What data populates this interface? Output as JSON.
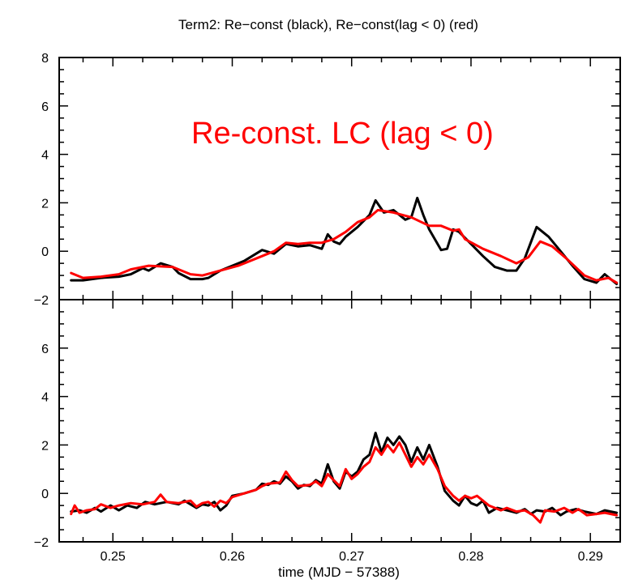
{
  "chart_data": [
    {
      "type": "line",
      "title": "Term2: Re−const (black), Re−const(lag < 0) (red)",
      "annotation": "Re-const. LC (lag < 0)",
      "xlim": [
        0.2455,
        0.2925
      ],
      "ylim": [
        -2,
        8
      ],
      "yticks": [
        -2,
        0,
        2,
        4,
        6,
        8
      ],
      "ytick_labels": [
        "−2",
        "0",
        "2",
        "4",
        "6",
        "8"
      ],
      "series": [
        {
          "color": "#000000",
          "points": [
            [
              0.2465,
              -1.2
            ],
            [
              0.2475,
              -1.2
            ],
            [
              0.249,
              -1.1
            ],
            [
              0.2505,
              -1.05
            ],
            [
              0.2515,
              -0.95
            ],
            [
              0.2525,
              -0.7
            ],
            [
              0.253,
              -0.8
            ],
            [
              0.254,
              -0.5
            ],
            [
              0.255,
              -0.65
            ],
            [
              0.2555,
              -0.9
            ],
            [
              0.2565,
              -1.15
            ],
            [
              0.2575,
              -1.15
            ],
            [
              0.258,
              -1.1
            ],
            [
              0.259,
              -0.8
            ],
            [
              0.2605,
              -0.5
            ],
            [
              0.261,
              -0.4
            ],
            [
              0.262,
              -0.1
            ],
            [
              0.2625,
              0.05
            ],
            [
              0.2635,
              -0.1
            ],
            [
              0.2645,
              0.3
            ],
            [
              0.2655,
              0.2
            ],
            [
              0.2665,
              0.25
            ],
            [
              0.2675,
              0.1
            ],
            [
              0.268,
              0.7
            ],
            [
              0.2685,
              0.4
            ],
            [
              0.269,
              0.3
            ],
            [
              0.2695,
              0.6
            ],
            [
              0.2705,
              1.0
            ],
            [
              0.2715,
              1.5
            ],
            [
              0.272,
              2.1
            ],
            [
              0.2727,
              1.6
            ],
            [
              0.2735,
              1.7
            ],
            [
              0.2745,
              1.3
            ],
            [
              0.275,
              1.4
            ],
            [
              0.2755,
              2.2
            ],
            [
              0.276,
              1.5
            ],
            [
              0.2765,
              0.9
            ],
            [
              0.2775,
              0.05
            ],
            [
              0.278,
              0.1
            ],
            [
              0.2785,
              0.9
            ],
            [
              0.279,
              0.8
            ],
            [
              0.28,
              0.3
            ],
            [
              0.281,
              -0.2
            ],
            [
              0.282,
              -0.65
            ],
            [
              0.283,
              -0.8
            ],
            [
              0.2838,
              -0.8
            ],
            [
              0.2845,
              -0.3
            ],
            [
              0.2855,
              1.0
            ],
            [
              0.2865,
              0.6
            ],
            [
              0.2875,
              0.0
            ],
            [
              0.2885,
              -0.6
            ],
            [
              0.2895,
              -1.15
            ],
            [
              0.2905,
              -1.3
            ],
            [
              0.2912,
              -0.95
            ],
            [
              0.2922,
              -1.35
            ]
          ]
        },
        {
          "color": "#ff0000",
          "points": [
            [
              0.2465,
              -0.9
            ],
            [
              0.2475,
              -1.1
            ],
            [
              0.249,
              -1.05
            ],
            [
              0.2505,
              -0.95
            ],
            [
              0.2515,
              -0.75
            ],
            [
              0.253,
              -0.6
            ],
            [
              0.255,
              -0.65
            ],
            [
              0.2565,
              -0.95
            ],
            [
              0.2575,
              -1.0
            ],
            [
              0.259,
              -0.8
            ],
            [
              0.2605,
              -0.6
            ],
            [
              0.262,
              -0.3
            ],
            [
              0.2635,
              0.0
            ],
            [
              0.2645,
              0.35
            ],
            [
              0.2655,
              0.3
            ],
            [
              0.2665,
              0.35
            ],
            [
              0.2675,
              0.35
            ],
            [
              0.2685,
              0.5
            ],
            [
              0.2695,
              0.8
            ],
            [
              0.2705,
              1.2
            ],
            [
              0.2715,
              1.4
            ],
            [
              0.2722,
              1.7
            ],
            [
              0.2735,
              1.6
            ],
            [
              0.275,
              1.4
            ],
            [
              0.2765,
              1.05
            ],
            [
              0.2775,
              1.05
            ],
            [
              0.2785,
              0.85
            ],
            [
              0.279,
              0.9
            ],
            [
              0.2795,
              0.5
            ],
            [
              0.281,
              0.1
            ],
            [
              0.2825,
              -0.2
            ],
            [
              0.2838,
              -0.5
            ],
            [
              0.2848,
              -0.25
            ],
            [
              0.2858,
              0.4
            ],
            [
              0.2868,
              0.2
            ],
            [
              0.288,
              -0.3
            ],
            [
              0.2895,
              -1.0
            ],
            [
              0.2905,
              -1.2
            ],
            [
              0.2915,
              -1.1
            ],
            [
              0.2922,
              -1.3
            ]
          ]
        }
      ]
    },
    {
      "type": "line",
      "xlabel": "time (MJD − 57388)",
      "xlim": [
        0.2455,
        0.2925
      ],
      "xticks": [
        0.25,
        0.26,
        0.27,
        0.28,
        0.29
      ],
      "xtick_labels": [
        "0.25",
        "0.26",
        "0.27",
        "0.28",
        "0.29"
      ],
      "ylim": [
        -2,
        8
      ],
      "yticks": [
        -2,
        0,
        2,
        4,
        6
      ],
      "ytick_labels": [
        "−2",
        "0",
        "2",
        "4",
        "6"
      ],
      "series": [
        {
          "color": "#000000",
          "points": [
            [
              0.2465,
              -0.75
            ],
            [
              0.2472,
              -0.7
            ],
            [
              0.2478,
              -0.8
            ],
            [
              0.2485,
              -0.6
            ],
            [
              0.249,
              -0.75
            ],
            [
              0.2498,
              -0.5
            ],
            [
              0.2505,
              -0.7
            ],
            [
              0.2512,
              -0.5
            ],
            [
              0.252,
              -0.6
            ],
            [
              0.2527,
              -0.35
            ],
            [
              0.2535,
              -0.45
            ],
            [
              0.2545,
              -0.35
            ],
            [
              0.2555,
              -0.45
            ],
            [
              0.256,
              -0.3
            ],
            [
              0.2565,
              -0.45
            ],
            [
              0.257,
              -0.6
            ],
            [
              0.2575,
              -0.45
            ],
            [
              0.258,
              -0.5
            ],
            [
              0.2585,
              -0.35
            ],
            [
              0.259,
              -0.7
            ],
            [
              0.2595,
              -0.5
            ],
            [
              0.26,
              -0.1
            ],
            [
              0.261,
              0.0
            ],
            [
              0.262,
              0.15
            ],
            [
              0.2625,
              0.4
            ],
            [
              0.263,
              0.35
            ],
            [
              0.2635,
              0.5
            ],
            [
              0.264,
              0.4
            ],
            [
              0.2645,
              0.7
            ],
            [
              0.265,
              0.5
            ],
            [
              0.2655,
              0.2
            ],
            [
              0.266,
              0.35
            ],
            [
              0.2665,
              0.3
            ],
            [
              0.267,
              0.55
            ],
            [
              0.2675,
              0.4
            ],
            [
              0.268,
              1.2
            ],
            [
              0.2685,
              0.5
            ],
            [
              0.269,
              0.2
            ],
            [
              0.2695,
              0.9
            ],
            [
              0.27,
              0.7
            ],
            [
              0.2705,
              0.9
            ],
            [
              0.271,
              1.4
            ],
            [
              0.2715,
              1.6
            ],
            [
              0.272,
              2.5
            ],
            [
              0.2725,
              1.7
            ],
            [
              0.273,
              2.3
            ],
            [
              0.2735,
              2.0
            ],
            [
              0.274,
              2.35
            ],
            [
              0.2745,
              2.0
            ],
            [
              0.275,
              1.3
            ],
            [
              0.2755,
              1.9
            ],
            [
              0.276,
              1.4
            ],
            [
              0.2765,
              2.0
            ],
            [
              0.2772,
              1.1
            ],
            [
              0.2778,
              0.1
            ],
            [
              0.2785,
              -0.3
            ],
            [
              0.279,
              -0.5
            ],
            [
              0.2795,
              -0.1
            ],
            [
              0.28,
              -0.4
            ],
            [
              0.2805,
              -0.5
            ],
            [
              0.281,
              -0.3
            ],
            [
              0.2815,
              -0.8
            ],
            [
              0.2822,
              -0.6
            ],
            [
              0.283,
              -0.7
            ],
            [
              0.2838,
              -0.8
            ],
            [
              0.2845,
              -0.65
            ],
            [
              0.285,
              -0.85
            ],
            [
              0.2855,
              -0.7
            ],
            [
              0.2862,
              -0.75
            ],
            [
              0.2868,
              -0.6
            ],
            [
              0.2875,
              -0.9
            ],
            [
              0.288,
              -0.75
            ],
            [
              0.2888,
              -0.65
            ],
            [
              0.2895,
              -0.75
            ],
            [
              0.2905,
              -0.85
            ],
            [
              0.2912,
              -0.7
            ],
            [
              0.2922,
              -0.8
            ]
          ]
        },
        {
          "color": "#ff0000",
          "points": [
            [
              0.2465,
              -0.85
            ],
            [
              0.2468,
              -0.5
            ],
            [
              0.2472,
              -0.8
            ],
            [
              0.2478,
              -0.7
            ],
            [
              0.2485,
              -0.65
            ],
            [
              0.249,
              -0.45
            ],
            [
              0.2498,
              -0.6
            ],
            [
              0.2505,
              -0.5
            ],
            [
              0.2515,
              -0.4
            ],
            [
              0.2525,
              -0.45
            ],
            [
              0.2535,
              -0.35
            ],
            [
              0.254,
              -0.05
            ],
            [
              0.2545,
              -0.35
            ],
            [
              0.2555,
              -0.4
            ],
            [
              0.2565,
              -0.3
            ],
            [
              0.257,
              -0.55
            ],
            [
              0.2575,
              -0.4
            ],
            [
              0.258,
              -0.35
            ],
            [
              0.2585,
              -0.55
            ],
            [
              0.259,
              -0.3
            ],
            [
              0.2595,
              -0.4
            ],
            [
              0.26,
              -0.15
            ],
            [
              0.261,
              0.0
            ],
            [
              0.262,
              0.15
            ],
            [
              0.2625,
              0.3
            ],
            [
              0.263,
              0.4
            ],
            [
              0.264,
              0.45
            ],
            [
              0.2645,
              0.9
            ],
            [
              0.265,
              0.55
            ],
            [
              0.2655,
              0.3
            ],
            [
              0.2665,
              0.35
            ],
            [
              0.267,
              0.5
            ],
            [
              0.2675,
              0.3
            ],
            [
              0.268,
              0.8
            ],
            [
              0.2685,
              0.55
            ],
            [
              0.269,
              0.3
            ],
            [
              0.2695,
              1.0
            ],
            [
              0.27,
              0.6
            ],
            [
              0.2705,
              0.8
            ],
            [
              0.271,
              1.1
            ],
            [
              0.2715,
              1.3
            ],
            [
              0.272,
              1.9
            ],
            [
              0.2725,
              1.6
            ],
            [
              0.273,
              2.0
            ],
            [
              0.2735,
              1.7
            ],
            [
              0.274,
              2.1
            ],
            [
              0.2745,
              1.6
            ],
            [
              0.275,
              1.1
            ],
            [
              0.2755,
              1.5
            ],
            [
              0.276,
              1.2
            ],
            [
              0.2765,
              1.6
            ],
            [
              0.2772,
              1.0
            ],
            [
              0.2778,
              0.3
            ],
            [
              0.2785,
              -0.1
            ],
            [
              0.279,
              -0.3
            ],
            [
              0.2795,
              -0.1
            ],
            [
              0.28,
              -0.2
            ],
            [
              0.2805,
              -0.1
            ],
            [
              0.281,
              -0.3
            ],
            [
              0.2815,
              -0.5
            ],
            [
              0.2825,
              -0.7
            ],
            [
              0.283,
              -0.6
            ],
            [
              0.2838,
              -0.75
            ],
            [
              0.2845,
              -0.7
            ],
            [
              0.2852,
              -0.9
            ],
            [
              0.2858,
              -1.2
            ],
            [
              0.2862,
              -0.7
            ],
            [
              0.287,
              -0.75
            ],
            [
              0.2878,
              -0.6
            ],
            [
              0.2885,
              -0.8
            ],
            [
              0.289,
              -0.65
            ],
            [
              0.2897,
              -0.9
            ],
            [
              0.2905,
              -0.85
            ],
            [
              0.2912,
              -0.8
            ],
            [
              0.2922,
              -0.9
            ]
          ]
        }
      ]
    }
  ]
}
